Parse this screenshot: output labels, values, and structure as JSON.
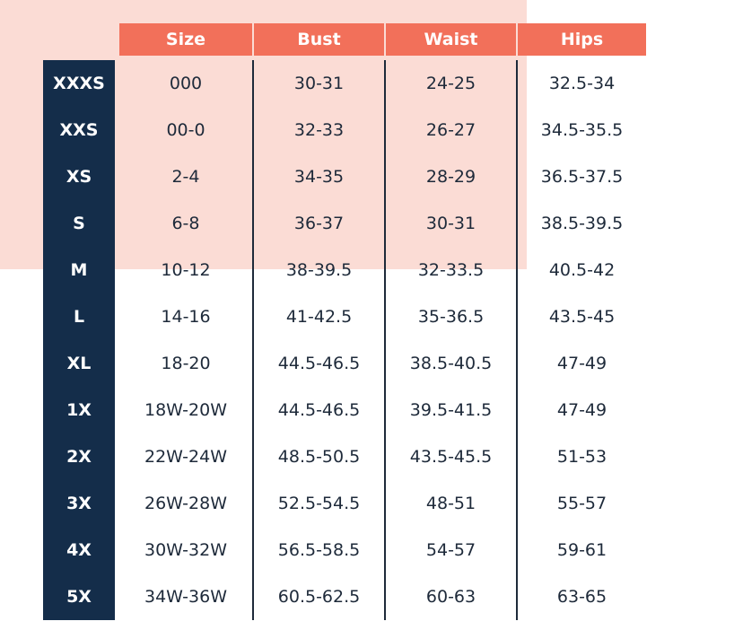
{
  "table": {
    "header": [
      "Size",
      "Bust",
      "Waist",
      "Hips"
    ],
    "rows": [
      {
        "label": "XXXS",
        "cells": [
          "000",
          "30-31",
          "24-25",
          "32.5-34"
        ]
      },
      {
        "label": "XXS",
        "cells": [
          "00-0",
          "32-33",
          "26-27",
          "34.5-35.5"
        ]
      },
      {
        "label": "XS",
        "cells": [
          "2-4",
          "34-35",
          "28-29",
          "36.5-37.5"
        ]
      },
      {
        "label": "S",
        "cells": [
          "6-8",
          "36-37",
          "30-31",
          "38.5-39.5"
        ]
      },
      {
        "label": "M",
        "cells": [
          "10-12",
          "38-39.5",
          "32-33.5",
          "40.5-42"
        ]
      },
      {
        "label": "L",
        "cells": [
          "14-16",
          "41-42.5",
          "35-36.5",
          "43.5-45"
        ]
      },
      {
        "label": "XL",
        "cells": [
          "18-20",
          "44.5-46.5",
          "38.5-40.5",
          "47-49"
        ]
      },
      {
        "label": "1X",
        "cells": [
          "18W-20W",
          "44.5-46.5",
          "39.5-41.5",
          "47-49"
        ]
      },
      {
        "label": "2X",
        "cells": [
          "22W-24W",
          "48.5-50.5",
          "43.5-45.5",
          "51-53"
        ]
      },
      {
        "label": "3X",
        "cells": [
          "26W-28W",
          "52.5-54.5",
          "48-51",
          "55-57"
        ]
      },
      {
        "label": "4X",
        "cells": [
          "30W-32W",
          "56.5-58.5",
          "54-57",
          "59-61"
        ]
      },
      {
        "label": "5X",
        "cells": [
          "34W-36W",
          "60.5-62.5",
          "60-63",
          "63-65"
        ]
      }
    ]
  }
}
